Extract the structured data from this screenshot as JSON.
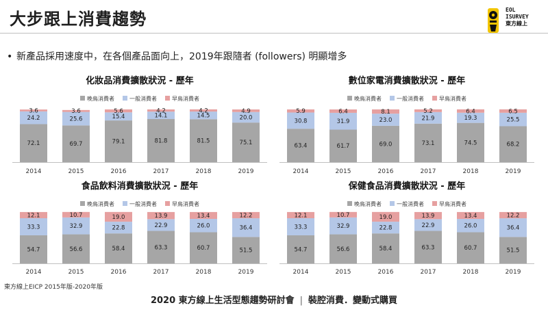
{
  "header": {
    "title": "大步跟上消費趨勢",
    "logo_text_line1": "EOL",
    "logo_text_line2": "ISURVEY",
    "logo_text_line3": "東方線上"
  },
  "bullet": {
    "text": "新產品採用速度中，在各個產品面向上，2019年跟隨者 (followers) 明顯增多"
  },
  "legend_labels": [
    "晚鳥消費者",
    "一般消費者",
    "早鳥消費者"
  ],
  "colors": {
    "late": "#a6a6a6",
    "general": "#b4c7e7",
    "early": "#e6a0a0",
    "axis": "#bfbfbf"
  },
  "chart_data": [
    {
      "type": "bar",
      "stacked": true,
      "title": "化妝品消費擴散狀況 - 歷年",
      "categories": [
        "2014",
        "2015",
        "2016",
        "2017",
        "2018",
        "2019"
      ],
      "series": [
        {
          "name": "晚鳥消費者",
          "values": [
            72.1,
            69.7,
            79.1,
            81.8,
            81.5,
            75.1
          ]
        },
        {
          "name": "一般消費者",
          "values": [
            24.2,
            25.6,
            15.4,
            14.1,
            14.5,
            20.0
          ]
        },
        {
          "name": "早鳥消費者",
          "values": [
            3.6,
            3.6,
            5.6,
            4.2,
            4.2,
            4.9
          ]
        }
      ],
      "ylim": [
        0,
        100
      ],
      "legend": "top"
    },
    {
      "type": "bar",
      "stacked": true,
      "title": "數位家電消費擴散狀況 - 歷年",
      "categories": [
        "2014",
        "2015",
        "2016",
        "2017",
        "2018",
        "2019"
      ],
      "series": [
        {
          "name": "晚鳥消費者",
          "values": [
            63.4,
            61.7,
            69.0,
            73.1,
            74.5,
            68.2
          ]
        },
        {
          "name": "一般消費者",
          "values": [
            30.8,
            31.9,
            23.0,
            21.9,
            19.3,
            25.5
          ]
        },
        {
          "name": "早鳥消費者",
          "values": [
            5.9,
            6.4,
            8.1,
            5.2,
            6.4,
            6.5
          ]
        }
      ],
      "ylim": [
        0,
        100
      ],
      "legend": "top"
    },
    {
      "type": "bar",
      "stacked": true,
      "title": "食品飲料消費擴散狀況 - 歷年",
      "categories": [
        "2014",
        "2015",
        "2016",
        "2017",
        "2018",
        "2019"
      ],
      "series": [
        {
          "name": "晚鳥消費者",
          "values": [
            54.7,
            56.6,
            58.4,
            63.3,
            60.7,
            51.5
          ]
        },
        {
          "name": "一般消費者",
          "values": [
            33.3,
            32.9,
            22.8,
            22.9,
            26.0,
            36.4
          ]
        },
        {
          "name": "早鳥消費者",
          "values": [
            12.1,
            10.7,
            19.0,
            13.9,
            13.4,
            12.2
          ]
        }
      ],
      "ylim": [
        0,
        100
      ],
      "legend": "top"
    },
    {
      "type": "bar",
      "stacked": true,
      "title": "保健食品消費擴散狀況 - 歷年",
      "categories": [
        "2014",
        "2015",
        "2016",
        "2017",
        "2018",
        "2019"
      ],
      "series": [
        {
          "name": "晚鳥消費者",
          "values": [
            54.7,
            56.6,
            58.4,
            63.3,
            60.7,
            51.5
          ]
        },
        {
          "name": "一般消費者",
          "values": [
            33.3,
            32.9,
            22.8,
            22.9,
            26.0,
            36.4
          ]
        },
        {
          "name": "早鳥消費者",
          "values": [
            12.1,
            10.7,
            19.0,
            13.9,
            13.4,
            12.2
          ]
        }
      ],
      "ylim": [
        0,
        100
      ],
      "legend": "top"
    }
  ],
  "source": "東方線上EICP 2015年版-2020年版",
  "footer": {
    "left": "2020 東方線上生活型態趨勢研討會",
    "separator": "|",
    "right": "裝腔消費．變動式購買"
  }
}
